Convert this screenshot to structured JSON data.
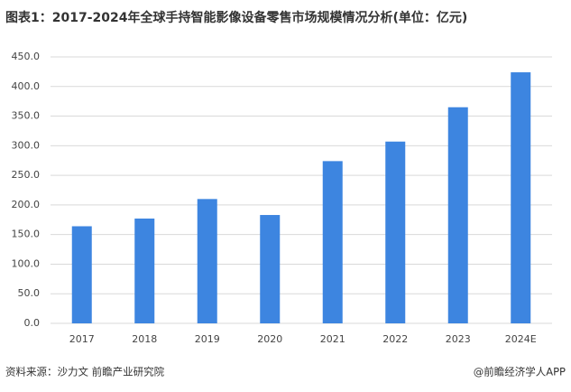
{
  "chart_data": {
    "type": "bar",
    "title": "图表1：2017-2024年全球手持智能影像设备零售市场规模情况分析(单位：亿元)",
    "categories": [
      "2017",
      "2018",
      "2019",
      "2020",
      "2021",
      "2022",
      "2023",
      "2024E"
    ],
    "values": [
      164,
      177,
      210,
      183,
      274,
      307,
      365,
      424
    ],
    "color": "#3d85e0",
    "ylim": [
      0,
      450
    ],
    "yticks": [
      {
        "value": 0,
        "label": "0.0"
      },
      {
        "value": 50,
        "label": "50.0"
      },
      {
        "value": 100,
        "label": "100.0"
      },
      {
        "value": 150,
        "label": "150.0"
      },
      {
        "value": 200,
        "label": "200.0"
      },
      {
        "value": 250,
        "label": "250.0"
      },
      {
        "value": 300,
        "label": "300.0"
      },
      {
        "value": 350,
        "label": "350.0"
      },
      {
        "value": 400,
        "label": "400.0"
      },
      {
        "value": 450,
        "label": "450.0"
      }
    ],
    "grid": true,
    "source": "资料来源：沙力文 前瞻产业研究院",
    "credit": "@前瞻经济学人APP"
  }
}
